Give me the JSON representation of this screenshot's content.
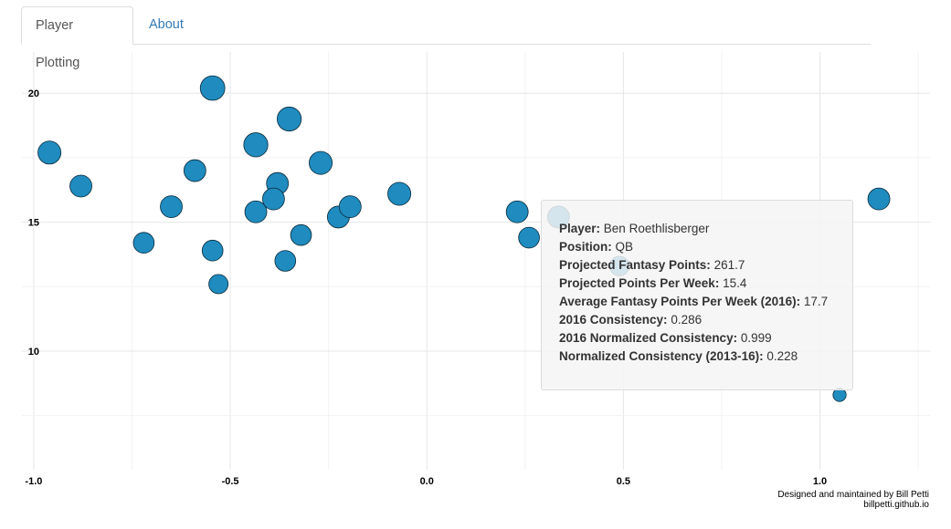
{
  "tabs": [
    {
      "label": "Player Plotting",
      "active": true
    },
    {
      "label": "About",
      "active": false
    }
  ],
  "chart_data": {
    "type": "scatter",
    "title": "",
    "xlabel": "",
    "ylabel": "",
    "xlim": [
      -1.03,
      1.28
    ],
    "ylim": [
      5.4,
      21.6
    ],
    "x_ticks": [
      -1.0,
      -0.5,
      0.0,
      0.5,
      1.0
    ],
    "x_tick_labels": [
      "-1.0",
      "-0.5",
      "0.0",
      "0.5",
      "1.0"
    ],
    "y_ticks": [
      10,
      15,
      20
    ],
    "y_tick_labels": [
      "10",
      "15",
      "20"
    ],
    "grid": true,
    "point_color": "#1f8bbf",
    "series": [
      {
        "points": [
          {
            "x": -0.96,
            "y": 17.7,
            "size": 1.05
          },
          {
            "x": -0.88,
            "y": 16.4,
            "size": 1.0
          },
          {
            "x": -0.72,
            "y": 14.2,
            "size": 0.95
          },
          {
            "x": -0.65,
            "y": 15.6,
            "size": 1.0
          },
          {
            "x": -0.59,
            "y": 17.0,
            "size": 1.0
          },
          {
            "x": -0.545,
            "y": 20.2,
            "size": 1.12
          },
          {
            "x": -0.545,
            "y": 13.9,
            "size": 0.95
          },
          {
            "x": -0.53,
            "y": 12.6,
            "size": 0.88
          },
          {
            "x": -0.435,
            "y": 18.0,
            "size": 1.1
          },
          {
            "x": -0.435,
            "y": 15.4,
            "size": 1.0
          },
          {
            "x": -0.38,
            "y": 16.5,
            "size": 1.0
          },
          {
            "x": -0.39,
            "y": 15.9,
            "size": 1.0
          },
          {
            "x": -0.35,
            "y": 19.0,
            "size": 1.1
          },
          {
            "x": -0.36,
            "y": 13.5,
            "size": 0.95
          },
          {
            "x": -0.32,
            "y": 14.5,
            "size": 0.95
          },
          {
            "x": -0.27,
            "y": 17.3,
            "size": 1.05
          },
          {
            "x": -0.225,
            "y": 15.2,
            "size": 1.0
          },
          {
            "x": -0.195,
            "y": 15.6,
            "size": 1.0
          },
          {
            "x": -0.07,
            "y": 16.1,
            "size": 1.05
          },
          {
            "x": 0.23,
            "y": 15.4,
            "size": 1.0
          },
          {
            "x": 0.26,
            "y": 14.4,
            "size": 0.95
          },
          {
            "x": 0.335,
            "y": 15.2,
            "size": 1.0
          },
          {
            "x": 0.49,
            "y": 13.3,
            "size": 0.9
          },
          {
            "x": 1.05,
            "y": 8.3,
            "size": 0.6
          },
          {
            "x": 1.15,
            "y": 15.9,
            "size": 1.0
          }
        ]
      }
    ]
  },
  "tooltip": {
    "rows": [
      {
        "key": "Player:",
        "value": "Ben Roethlisberger"
      },
      {
        "key": "Position:",
        "value": "QB"
      },
      {
        "key": "Projected Fantasy Points:",
        "value": "261.7"
      },
      {
        "key": "Projected Points Per Week:",
        "value": "15.4"
      },
      {
        "key": "Average Fantasy Points Per Week (2016):",
        "value": "17.7"
      },
      {
        "key": "2016 Consistency:",
        "value": "0.286"
      },
      {
        "key": "2016 Normalized Consistency:",
        "value": "0.999"
      },
      {
        "key": "Normalized Consistency (2013-16):",
        "value": "0.228"
      }
    ]
  },
  "credit": {
    "line1": "Designed and maintained by Bill Petti",
    "line2": "billpetti.github.io"
  }
}
